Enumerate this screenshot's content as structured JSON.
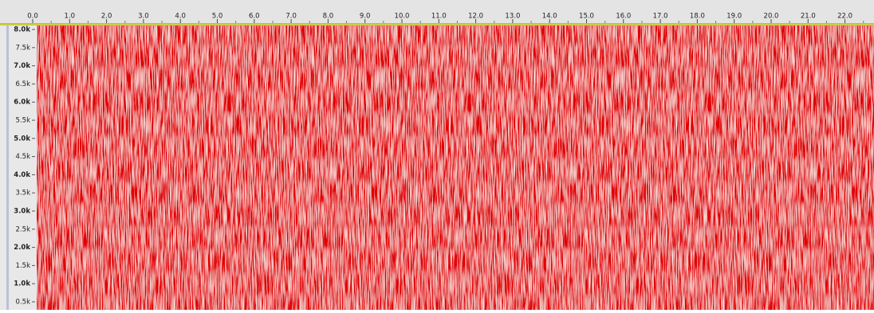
{
  "ruler": {
    "labels": [
      "0.0",
      "1.0",
      "2.0",
      "3.0",
      "4.0",
      "5.0",
      "6.0",
      "7.0",
      "8.0",
      "9.0",
      "10.0",
      "11.0",
      "12.0",
      "13.0",
      "14.0",
      "15.0",
      "16.0",
      "17.0",
      "18.0",
      "19.0",
      "20.0",
      "21.0",
      "22.0"
    ]
  },
  "frequency_axis": {
    "labels": [
      "8.0k",
      "7.5k",
      "7.0k",
      "6.5k",
      "6.0k",
      "5.5k",
      "5.0k",
      "4.5k",
      "4.0k",
      "3.5k",
      "3.0k",
      "2.5k",
      "2.0k",
      "1.5k",
      "1.0k",
      "0.5k"
    ]
  }
}
